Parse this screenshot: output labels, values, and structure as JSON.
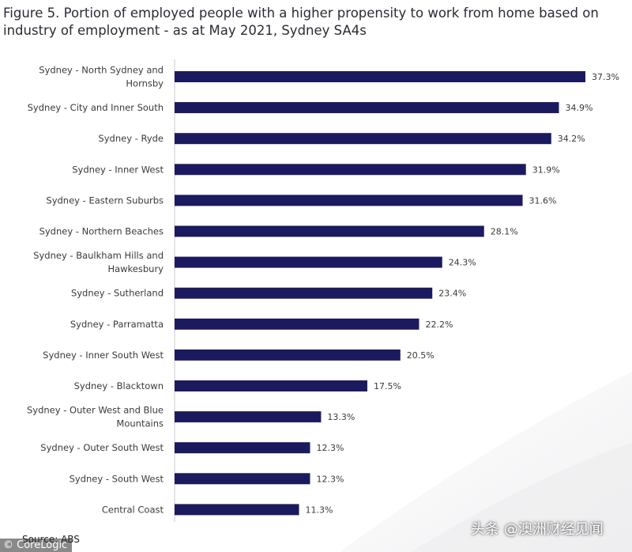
{
  "title": "Figure 5. Portion of employed people with a higher propensity to work from home based on industry of employment - as at May 2021, Sydney SA4s",
  "source_text": "Source: ABS",
  "logo_text": "© CoreLogic",
  "watermark_text": "头条 @澳洲财经见闻",
  "colors": {
    "bar": "#1b1a5e",
    "axis": "#c8c8c8",
    "text": "#3a3a3a",
    "background": "#ffffff"
  },
  "chart_data": {
    "type": "bar",
    "orientation": "horizontal",
    "title": "Figure 5. Portion of employed people with a higher propensity to work from home based on industry of employment - as at May 2021, Sydney SA4s",
    "categories": [
      "Sydney - North Sydney and Hornsby",
      "Sydney - City and Inner South",
      "Sydney - Ryde",
      "Sydney - Inner West",
      "Sydney - Eastern Suburbs",
      "Sydney - Northern Beaches",
      "Sydney - Baulkham Hills and Hawkesbury",
      "Sydney - Sutherland",
      "Sydney - Parramatta",
      "Sydney - Inner South West",
      "Sydney - Blacktown",
      "Sydney - Outer West and Blue Mountains",
      "Sydney - Outer South West",
      "Sydney - South West",
      "Central Coast"
    ],
    "category_lines": [
      [
        "Sydney - North Sydney and",
        "Hornsby"
      ],
      [
        "Sydney - City and Inner South"
      ],
      [
        "Sydney - Ryde"
      ],
      [
        "Sydney - Inner West"
      ],
      [
        "Sydney - Eastern Suburbs"
      ],
      [
        "Sydney - Northern Beaches"
      ],
      [
        "Sydney - Baulkham Hills and",
        "Hawkesbury"
      ],
      [
        "Sydney - Sutherland"
      ],
      [
        "Sydney - Parramatta"
      ],
      [
        "Sydney - Inner South West"
      ],
      [
        "Sydney - Blacktown"
      ],
      [
        "Sydney - Outer West and Blue",
        "Mountains"
      ],
      [
        "Sydney - Outer South West"
      ],
      [
        "Sydney - South West"
      ],
      [
        "Central Coast"
      ]
    ],
    "values": [
      37.3,
      34.9,
      34.2,
      31.9,
      31.6,
      28.1,
      24.3,
      23.4,
      22.2,
      20.5,
      17.5,
      13.3,
      12.3,
      12.3,
      11.3
    ],
    "value_labels": [
      "37.3%",
      "34.9%",
      "34.2%",
      "31.9%",
      "31.6%",
      "28.1%",
      "24.3%",
      "23.4%",
      "22.2%",
      "20.5%",
      "17.5%",
      "13.3%",
      "12.3%",
      "12.3%",
      "11.3%"
    ],
    "unit": "%",
    "xlabel": "",
    "ylabel": "",
    "xlim": [
      0,
      40
    ],
    "grid": false,
    "legend": "none"
  }
}
